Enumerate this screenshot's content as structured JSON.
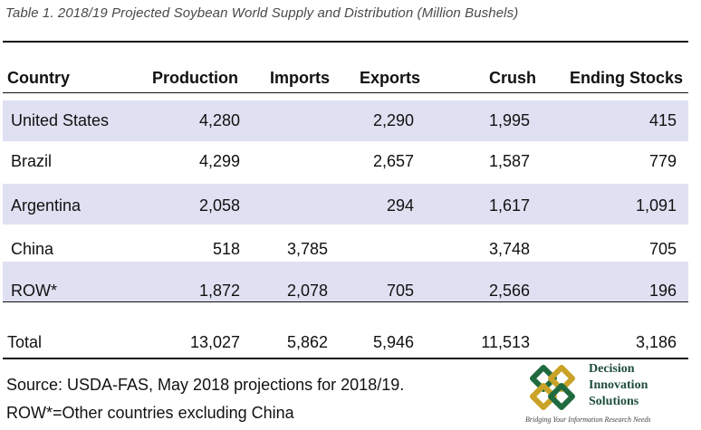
{
  "caption": "Table 1. 2018/19 Projected Soybean World Supply and Distribution (Million Bushels)",
  "table": {
    "headers": [
      "Country",
      "Production",
      "Imports",
      "Exports",
      "Crush",
      "Ending Stocks"
    ],
    "rows": [
      {
        "country": "United States",
        "production": "4,280",
        "imports": "",
        "exports": "2,290",
        "crush": "1,995",
        "ending_stocks": "415"
      },
      {
        "country": "Brazil",
        "production": "4,299",
        "imports": "",
        "exports": "2,657",
        "crush": "1,587",
        "ending_stocks": "779"
      },
      {
        "country": "Argentina",
        "production": "2,058",
        "imports": "",
        "exports": "294",
        "crush": "1,617",
        "ending_stocks": "1,091"
      },
      {
        "country": "China",
        "production": "518",
        "imports": "3,785",
        "exports": "",
        "crush": "3,748",
        "ending_stocks": "705"
      },
      {
        "country": "ROW*",
        "production": "1,872",
        "imports": "2,078",
        "exports": "705",
        "crush": "2,566",
        "ending_stocks": "196"
      }
    ],
    "total": {
      "country": "Total",
      "production": "13,027",
      "imports": "5,862",
      "exports": "5,946",
      "crush": "11,513",
      "ending_stocks": "3,186"
    },
    "band_color": "#dfe1f2"
  },
  "source": "Source: USDA-FAS, May 2018 projections for 2018/19.",
  "note": "ROW*=Other countries excluding China",
  "logo": {
    "line1": "Decision",
    "line2": "Innovation",
    "line3": "Solutions",
    "tagline": "Bridging Your Information Research Needs",
    "colors": {
      "green": "#1f6b3f",
      "gold": "#c9a227"
    }
  }
}
